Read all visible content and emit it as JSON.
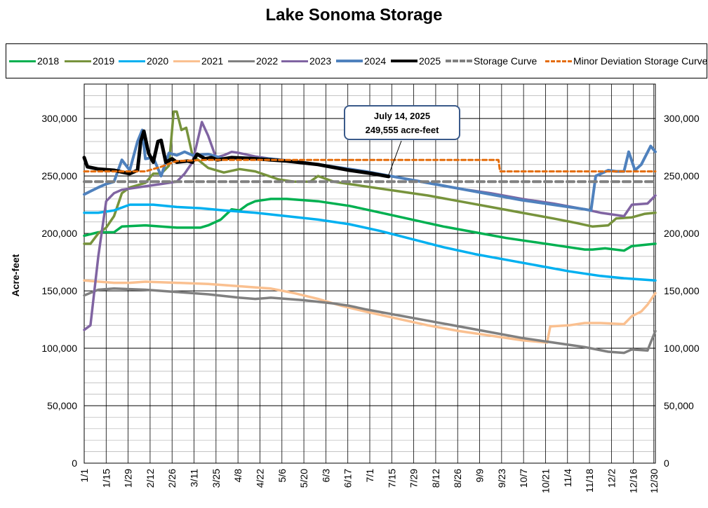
{
  "chart_data": {
    "type": "line",
    "title": "Lake Sonoma Storage",
    "ylabel": "Acre-feet",
    "ylim": [
      0,
      330000
    ],
    "yticks": [
      "0",
      "50,000",
      "100,000",
      "150,000",
      "200,000",
      "250,000",
      "300,000"
    ],
    "xticks": [
      "1/1",
      "1/15",
      "1/29",
      "2/12",
      "2/26",
      "3/11",
      "3/25",
      "4/8",
      "4/22",
      "5/6",
      "5/20",
      "6/3",
      "6/17",
      "7/1",
      "7/15",
      "7/29",
      "8/12",
      "8/26",
      "9/9",
      "9/23",
      "10/7",
      "10/21",
      "11/4",
      "11/18",
      "12/2",
      "12/16",
      "12/30"
    ],
    "x_unit": "day of year",
    "legend_position": "top",
    "grid": true,
    "annotation": {
      "line1": "July 14, 2025",
      "line2": "249,555 acre-feet",
      "day": 195,
      "value": 249555
    },
    "series": [
      {
        "name": "2018",
        "color": "#00b050",
        "width": 3.5,
        "dash": "",
        "points": [
          [
            1,
            198000
          ],
          [
            10,
            201000
          ],
          [
            20,
            201000
          ],
          [
            25,
            206000
          ],
          [
            40,
            207000
          ],
          [
            60,
            205000
          ],
          [
            75,
            205000
          ],
          [
            80,
            207000
          ],
          [
            88,
            212000
          ],
          [
            95,
            221000
          ],
          [
            100,
            220000
          ],
          [
            105,
            225000
          ],
          [
            110,
            228000
          ],
          [
            120,
            230000
          ],
          [
            130,
            230000
          ],
          [
            150,
            228000
          ],
          [
            170,
            224000
          ],
          [
            190,
            218000
          ],
          [
            210,
            212000
          ],
          [
            230,
            206000
          ],
          [
            250,
            201000
          ],
          [
            270,
            196000
          ],
          [
            290,
            192000
          ],
          [
            310,
            188000
          ],
          [
            320,
            186000
          ],
          [
            325,
            186000
          ],
          [
            333,
            187000
          ],
          [
            345,
            185000
          ],
          [
            350,
            189000
          ],
          [
            365,
            191000
          ]
        ]
      },
      {
        "name": "2019",
        "color": "#77933c",
        "width": 3.5,
        "dash": "",
        "points": [
          [
            1,
            191000
          ],
          [
            5,
            191000
          ],
          [
            10,
            200000
          ],
          [
            15,
            205000
          ],
          [
            20,
            215000
          ],
          [
            25,
            235000
          ],
          [
            30,
            240000
          ],
          [
            40,
            244000
          ],
          [
            45,
            252000
          ],
          [
            50,
            252000
          ],
          [
            55,
            259000
          ],
          [
            58,
            306000
          ],
          [
            60,
            306000
          ],
          [
            63,
            290000
          ],
          [
            66,
            292000
          ],
          [
            70,
            268000
          ],
          [
            80,
            257000
          ],
          [
            90,
            253000
          ],
          [
            100,
            256000
          ],
          [
            110,
            254000
          ],
          [
            125,
            247000
          ],
          [
            135,
            245000
          ],
          [
            145,
            245000
          ],
          [
            150,
            250000
          ],
          [
            160,
            245000
          ],
          [
            165,
            244000
          ],
          [
            175,
            242000
          ],
          [
            200,
            237000
          ],
          [
            220,
            233000
          ],
          [
            240,
            228000
          ],
          [
            260,
            223000
          ],
          [
            280,
            218000
          ],
          [
            300,
            213000
          ],
          [
            315,
            209000
          ],
          [
            325,
            206000
          ],
          [
            335,
            207000
          ],
          [
            340,
            213000
          ],
          [
            350,
            214000
          ],
          [
            358,
            217000
          ],
          [
            365,
            218000
          ]
        ]
      },
      {
        "name": "2020",
        "color": "#00b0f0",
        "width": 3.5,
        "dash": "",
        "points": [
          [
            1,
            218000
          ],
          [
            10,
            218000
          ],
          [
            20,
            220000
          ],
          [
            30,
            225000
          ],
          [
            45,
            225000
          ],
          [
            60,
            223000
          ],
          [
            75,
            222000
          ],
          [
            90,
            220000
          ],
          [
            110,
            218000
          ],
          [
            130,
            215000
          ],
          [
            150,
            212000
          ],
          [
            170,
            208000
          ],
          [
            190,
            202000
          ],
          [
            210,
            195000
          ],
          [
            230,
            188000
          ],
          [
            250,
            182000
          ],
          [
            270,
            177000
          ],
          [
            290,
            172000
          ],
          [
            310,
            167000
          ],
          [
            330,
            163000
          ],
          [
            345,
            161000
          ],
          [
            365,
            159000
          ]
        ]
      },
      {
        "name": "2021",
        "color": "#fac090",
        "width": 3.5,
        "dash": "",
        "points": [
          [
            1,
            159000
          ],
          [
            20,
            157000
          ],
          [
            30,
            157000
          ],
          [
            40,
            158000
          ],
          [
            60,
            157000
          ],
          [
            80,
            156000
          ],
          [
            100,
            154000
          ],
          [
            120,
            152000
          ],
          [
            135,
            148000
          ],
          [
            150,
            143000
          ],
          [
            165,
            137000
          ],
          [
            180,
            132000
          ],
          [
            200,
            126000
          ],
          [
            220,
            120000
          ],
          [
            240,
            115000
          ],
          [
            260,
            111000
          ],
          [
            280,
            107000
          ],
          [
            296,
            105000
          ],
          [
            298,
            119000
          ],
          [
            310,
            120000
          ],
          [
            320,
            122000
          ],
          [
            330,
            122000
          ],
          [
            345,
            121000
          ],
          [
            350,
            128000
          ],
          [
            356,
            132000
          ],
          [
            360,
            138000
          ],
          [
            365,
            148000
          ]
        ]
      },
      {
        "name": "2022",
        "color": "#808080",
        "width": 3.5,
        "dash": "",
        "points": [
          [
            1,
            146000
          ],
          [
            10,
            151000
          ],
          [
            20,
            152000
          ],
          [
            40,
            151000
          ],
          [
            60,
            149000
          ],
          [
            80,
            147000
          ],
          [
            100,
            144000
          ],
          [
            110,
            143000
          ],
          [
            120,
            144000
          ],
          [
            140,
            142000
          ],
          [
            160,
            139000
          ],
          [
            170,
            137000
          ],
          [
            180,
            134000
          ],
          [
            200,
            129000
          ],
          [
            220,
            124000
          ],
          [
            240,
            119000
          ],
          [
            260,
            114000
          ],
          [
            280,
            109000
          ],
          [
            300,
            105000
          ],
          [
            320,
            101000
          ],
          [
            335,
            97000
          ],
          [
            345,
            96000
          ],
          [
            350,
            99000
          ],
          [
            360,
            98000
          ],
          [
            362,
            105000
          ],
          [
            365,
            115000
          ]
        ]
      },
      {
        "name": "2023",
        "color": "#8064a2",
        "width": 3.5,
        "dash": "",
        "points": [
          [
            1,
            116000
          ],
          [
            5,
            120000
          ],
          [
            10,
            180000
          ],
          [
            15,
            228000
          ],
          [
            20,
            235000
          ],
          [
            25,
            238000
          ],
          [
            40,
            241000
          ],
          [
            50,
            243000
          ],
          [
            60,
            245000
          ],
          [
            65,
            252000
          ],
          [
            70,
            262000
          ],
          [
            74,
            285000
          ],
          [
            76,
            297000
          ],
          [
            80,
            285000
          ],
          [
            85,
            266000
          ],
          [
            90,
            268000
          ],
          [
            95,
            271000
          ],
          [
            100,
            270000
          ],
          [
            110,
            267000
          ],
          [
            120,
            265000
          ],
          [
            140,
            262000
          ],
          [
            160,
            258000
          ],
          [
            180,
            254000
          ],
          [
            200,
            249000
          ],
          [
            220,
            244000
          ],
          [
            240,
            239000
          ],
          [
            260,
            235000
          ],
          [
            280,
            230000
          ],
          [
            300,
            226000
          ],
          [
            320,
            221000
          ],
          [
            330,
            218000
          ],
          [
            345,
            215000
          ],
          [
            350,
            225000
          ],
          [
            360,
            226000
          ],
          [
            365,
            233000
          ]
        ]
      },
      {
        "name": "2024",
        "color": "#4f81bd",
        "width": 4,
        "dash": "",
        "points": [
          [
            1,
            234000
          ],
          [
            10,
            240000
          ],
          [
            15,
            243000
          ],
          [
            20,
            245000
          ],
          [
            25,
            264000
          ],
          [
            30,
            255000
          ],
          [
            35,
            280000
          ],
          [
            38,
            290000
          ],
          [
            40,
            265000
          ],
          [
            45,
            266000
          ],
          [
            50,
            250000
          ],
          [
            55,
            270000
          ],
          [
            60,
            268000
          ],
          [
            65,
            271000
          ],
          [
            70,
            268000
          ],
          [
            80,
            269000
          ],
          [
            90,
            265000
          ],
          [
            100,
            266000
          ],
          [
            120,
            265000
          ],
          [
            140,
            262000
          ],
          [
            160,
            258000
          ],
          [
            180,
            254000
          ],
          [
            200,
            249000
          ],
          [
            220,
            244000
          ],
          [
            240,
            239000
          ],
          [
            260,
            234000
          ],
          [
            280,
            229000
          ],
          [
            300,
            225000
          ],
          [
            320,
            221000
          ],
          [
            324,
            220000
          ],
          [
            327,
            250000
          ],
          [
            335,
            255000
          ],
          [
            340,
            254000
          ],
          [
            345,
            254000
          ],
          [
            348,
            271000
          ],
          [
            352,
            255000
          ],
          [
            356,
            260000
          ],
          [
            362,
            276000
          ],
          [
            365,
            271000
          ]
        ]
      },
      {
        "name": "2025",
        "color": "#000000",
        "width": 5,
        "dash": "",
        "points": [
          [
            1,
            266000
          ],
          [
            3,
            258000
          ],
          [
            10,
            256000
          ],
          [
            20,
            255000
          ],
          [
            30,
            252000
          ],
          [
            35,
            255000
          ],
          [
            37,
            280000
          ],
          [
            39,
            289000
          ],
          [
            42,
            270000
          ],
          [
            45,
            262000
          ],
          [
            48,
            280000
          ],
          [
            50,
            281000
          ],
          [
            53,
            262000
          ],
          [
            57,
            265000
          ],
          [
            60,
            262000
          ],
          [
            67,
            263000
          ],
          [
            70,
            262000
          ],
          [
            73,
            269000
          ],
          [
            78,
            265000
          ],
          [
            82,
            266000
          ],
          [
            86,
            264000
          ],
          [
            95,
            266000
          ],
          [
            110,
            265000
          ],
          [
            130,
            263000
          ],
          [
            150,
            260000
          ],
          [
            170,
            255000
          ],
          [
            185,
            252000
          ],
          [
            195,
            249555
          ]
        ]
      },
      {
        "name": "Storage Curve",
        "color": "#808080",
        "width": 4,
        "dash": "10,6",
        "points": [
          [
            1,
            245000
          ],
          [
            365,
            245000
          ]
        ]
      },
      {
        "name": "Minor Deviation Storage Curve",
        "color": "#e46c0a",
        "width": 3,
        "dash": "6,4",
        "points": [
          [
            1,
            254000
          ],
          [
            40,
            254000
          ],
          [
            50,
            258000
          ],
          [
            60,
            263000
          ],
          [
            80,
            264000
          ],
          [
            265,
            264000
          ],
          [
            266,
            254000
          ],
          [
            365,
            254000
          ]
        ]
      }
    ]
  }
}
